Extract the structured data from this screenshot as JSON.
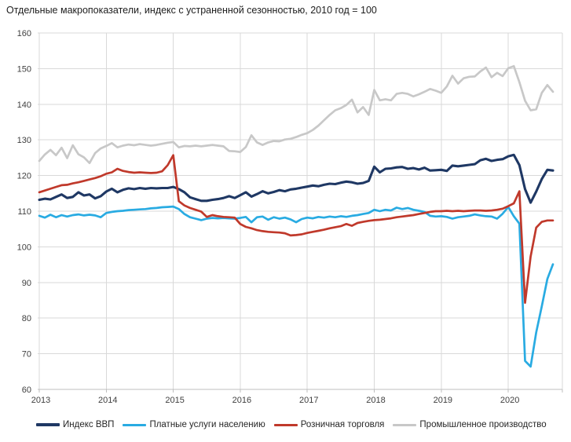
{
  "title": "Отдельные макропоказатели, индекс с устраненной сезонностью, 2010 год = 100",
  "colors": {
    "gdp": "#1F3864",
    "services": "#29ABE2",
    "retail": "#C0392B",
    "industry": "#C8C8C8",
    "gridline": "#D9D9D9",
    "axis": "#BFBFBF",
    "tick_text": "#404040"
  },
  "chart_data": {
    "type": "line",
    "title": "Отдельные макропоказатели, индекс с устраненной сезонностью, 2010 год = 100",
    "xlabel": "",
    "ylabel": "",
    "ylim": [
      60,
      160
    ],
    "y_ticks": [
      160,
      150,
      140,
      130,
      120,
      110,
      100,
      90,
      80,
      70,
      60
    ],
    "x_tick_labels": [
      "2013",
      "2014",
      "2015",
      "2016",
      "2017",
      "2018",
      "2019",
      "2020"
    ],
    "x_frequency": "monthly",
    "x_start": "2013-01",
    "x_end": "2020-09",
    "grid": true,
    "legend_position": "bottom",
    "series": [
      {
        "key": "gdp",
        "name": "Индекс ВВП",
        "color": "#1F3864",
        "stroke_width": 3.1,
        "values": [
          113.2,
          113.5,
          113.3,
          114.0,
          114.7,
          113.7,
          114.0,
          115.3,
          114.4,
          114.7,
          113.6,
          114.2,
          115.5,
          116.3,
          115.3,
          116.0,
          116.4,
          116.2,
          116.5,
          116.3,
          116.5,
          116.4,
          116.5,
          116.5,
          116.8,
          116.2,
          115.3,
          113.9,
          113.4,
          112.9,
          112.9,
          113.2,
          113.4,
          113.7,
          114.2,
          113.7,
          114.5,
          115.3,
          114.1,
          114.8,
          115.6,
          115.0,
          115.4,
          115.9,
          115.6,
          116.1,
          116.3,
          116.6,
          116.9,
          117.2,
          117.0,
          117.4,
          117.7,
          117.6,
          118.0,
          118.3,
          118.1,
          117.7,
          117.9,
          118.5,
          122.5,
          120.9,
          121.9,
          122.0,
          122.3,
          122.4,
          121.9,
          122.1,
          121.7,
          122.2,
          121.4,
          121.5,
          121.6,
          121.3,
          122.8,
          122.6,
          122.8,
          123.0,
          123.2,
          124.3,
          124.7,
          124.1,
          124.4,
          124.6,
          125.4,
          125.8,
          122.9,
          116.2,
          112.4,
          115.5,
          119.0,
          121.6,
          121.4
        ]
      },
      {
        "key": "services",
        "name": "Платные услуги населению",
        "color": "#29ABE2",
        "stroke_width": 2.7,
        "values": [
          108.7,
          108.2,
          109.0,
          108.3,
          108.9,
          108.5,
          108.9,
          109.1,
          108.8,
          109.0,
          108.8,
          108.3,
          109.5,
          109.8,
          110.0,
          110.1,
          110.3,
          110.4,
          110.5,
          110.6,
          110.8,
          110.9,
          111.1,
          111.2,
          111.3,
          110.6,
          109.2,
          108.3,
          107.9,
          107.5,
          107.9,
          108.1,
          108.0,
          108.1,
          108.0,
          107.9,
          108.1,
          108.4,
          106.9,
          108.3,
          108.5,
          107.6,
          108.3,
          107.9,
          108.2,
          107.7,
          106.9,
          107.8,
          108.2,
          108.0,
          108.4,
          108.2,
          108.5,
          108.3,
          108.6,
          108.4,
          108.7,
          108.9,
          109.2,
          109.5,
          110.4,
          110.0,
          110.4,
          110.2,
          111.0,
          110.6,
          110.9,
          110.4,
          110.1,
          109.8,
          108.7,
          108.5,
          108.6,
          108.4,
          107.9,
          108.3,
          108.5,
          108.7,
          109.1,
          108.8,
          108.6,
          108.5,
          107.9,
          109.3,
          111.2,
          108.6,
          106.5,
          68.0,
          66.4,
          76.0,
          83.3,
          91.0,
          95.1
        ]
      },
      {
        "key": "retail",
        "name": "Розничная торговля",
        "color": "#C0392B",
        "stroke_width": 2.7,
        "values": [
          115.3,
          115.8,
          116.3,
          116.8,
          117.3,
          117.4,
          117.8,
          118.1,
          118.5,
          118.9,
          119.3,
          119.8,
          120.5,
          120.9,
          121.9,
          121.3,
          121.0,
          120.8,
          120.9,
          120.8,
          120.7,
          120.8,
          121.2,
          122.9,
          125.7,
          112.8,
          111.6,
          110.9,
          110.4,
          109.9,
          108.4,
          108.9,
          108.6,
          108.4,
          108.3,
          108.2,
          106.4,
          105.6,
          105.2,
          104.7,
          104.4,
          104.2,
          104.1,
          104.0,
          103.8,
          103.2,
          103.3,
          103.5,
          103.9,
          104.2,
          104.5,
          104.8,
          105.2,
          105.5,
          105.8,
          106.4,
          105.9,
          106.7,
          107.0,
          107.3,
          107.5,
          107.6,
          107.8,
          108.0,
          108.3,
          108.5,
          108.7,
          108.9,
          109.2,
          109.5,
          109.8,
          110.0,
          110.0,
          110.1,
          110.0,
          110.1,
          110.0,
          110.1,
          110.2,
          110.2,
          110.1,
          110.2,
          110.4,
          110.7,
          111.4,
          112.2,
          115.6,
          84.3,
          97.3,
          105.4,
          107.0,
          107.4,
          107.4
        ]
      },
      {
        "key": "industry",
        "name": "Промышленное производство",
        "color": "#C8C8C8",
        "stroke_width": 2.7,
        "values": [
          124.1,
          125.9,
          127.2,
          125.7,
          127.8,
          124.9,
          128.5,
          126.0,
          125.1,
          123.5,
          126.3,
          127.6,
          128.3,
          129.1,
          127.9,
          128.4,
          128.7,
          128.5,
          128.8,
          128.6,
          128.4,
          128.6,
          128.9,
          129.2,
          129.4,
          127.9,
          128.3,
          128.2,
          128.4,
          128.2,
          128.4,
          128.6,
          128.4,
          128.2,
          126.9,
          126.8,
          126.6,
          128.0,
          131.3,
          129.3,
          128.6,
          129.3,
          129.7,
          129.6,
          130.1,
          130.3,
          130.8,
          131.4,
          131.9,
          132.8,
          134.0,
          135.5,
          137.0,
          138.3,
          138.9,
          139.8,
          141.3,
          137.7,
          139.2,
          137.0,
          144.0,
          141.1,
          141.4,
          141.1,
          142.9,
          143.2,
          142.9,
          142.2,
          142.8,
          143.5,
          144.3,
          143.8,
          143.2,
          145.0,
          148.0,
          145.8,
          147.3,
          147.7,
          147.8,
          149.2,
          150.3,
          147.6,
          148.8,
          147.9,
          150.1,
          150.7,
          146.2,
          141.0,
          138.3,
          138.6,
          143.2,
          145.4,
          143.5
        ]
      }
    ]
  }
}
